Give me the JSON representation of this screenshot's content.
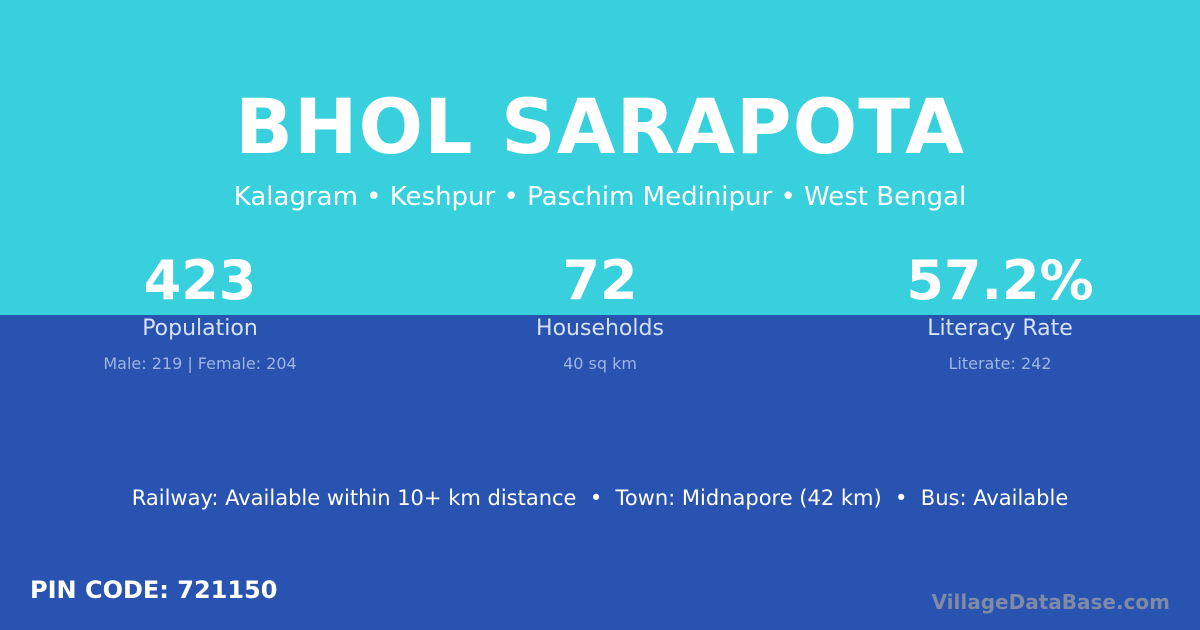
{
  "colors": {
    "top_background": "#37d0dc",
    "bottom_background": "#2853b0"
  },
  "village": {
    "name": "BHOL SARAPOTA",
    "location": "Kalagram • Keshpur • Paschim Medinipur • West Bengal"
  },
  "stats": [
    {
      "value": "423",
      "label": "Population",
      "detail": "Male: 219 | Female: 204"
    },
    {
      "value": "72",
      "label": "Households",
      "detail": "40 sq km"
    },
    {
      "value": "57.2%",
      "label": "Literacy Rate",
      "detail": "Literate: 242"
    }
  ],
  "access": "Railway: Available within 10+ km distance  •  Town: Midnapore (42 km)  •  Bus: Available",
  "pin_code": "PIN CODE: 721150",
  "brand": "VillageDataBase.com"
}
